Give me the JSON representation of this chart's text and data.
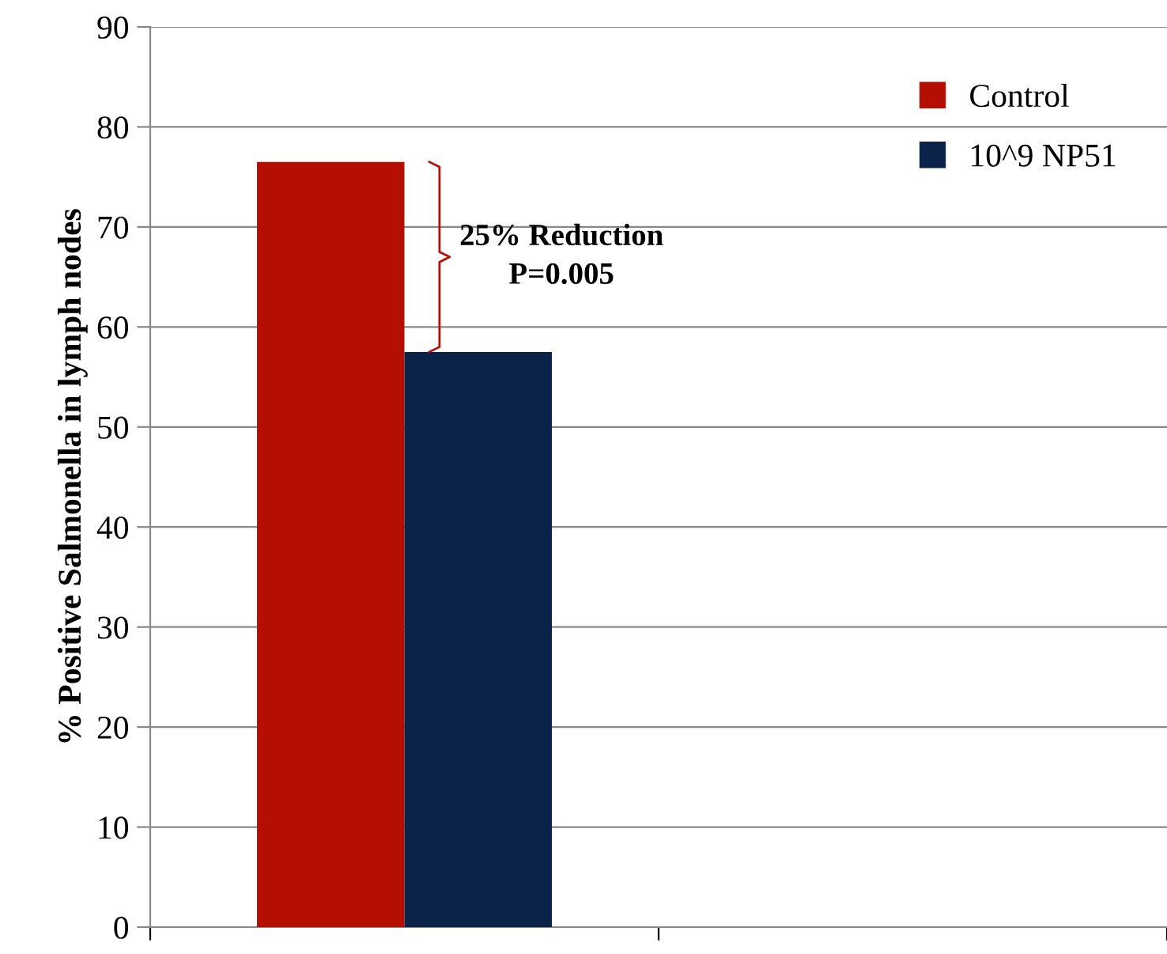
{
  "chart_data": {
    "type": "bar",
    "ylabel": "% Positive Salmonella in lymph nodes",
    "categories": [
      null,
      null
    ],
    "series": [
      {
        "name": "Control",
        "color": "#b50f04",
        "values": [
          76.5,
          null
        ]
      },
      {
        "name": "10^9 NP51",
        "color": "#0b2249",
        "values": [
          57.5,
          null
        ]
      }
    ],
    "ylim": [
      0,
      90
    ],
    "yticks": [
      0,
      10,
      20,
      30,
      40,
      50,
      60,
      70,
      80,
      90
    ],
    "grid": "y",
    "legend": "top right",
    "annotations": [
      "25% Reduction\nP=0.005"
    ]
  }
}
